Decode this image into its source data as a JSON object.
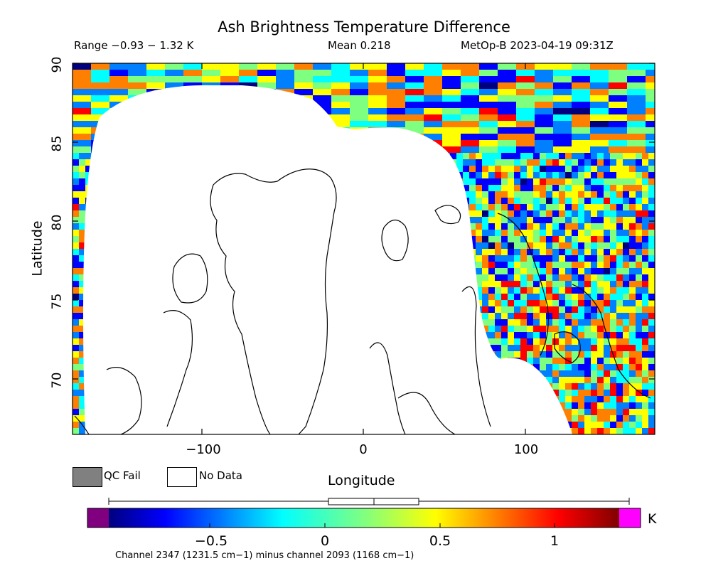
{
  "map": {
    "title": "Ash Brightness Temperature Difference",
    "range_text": "Range −0.93 − 1.32 K",
    "mean_text": "Mean 0.218",
    "satellite_text": "MetOp-B 2023-04-19 09:31Z",
    "y_axis_label": "Latitude",
    "x_axis_label": "Longitude",
    "y_ticks": [
      "90",
      "85",
      "80",
      "75",
      "70"
    ],
    "x_ticks": [
      "−100",
      "0",
      "100"
    ],
    "projection_extent": {
      "lon_min": -180,
      "lon_max": 180,
      "lat_min": 66.5,
      "lat_max": 90
    }
  },
  "legend": {
    "qc_fail_label": "QC Fail",
    "no_data_label": "No Data",
    "qc_fail_color": "#808080",
    "no_data_color": "#ffffff"
  },
  "colorbar": {
    "ticks": [
      "−0.5",
      "0",
      "0.5",
      "1"
    ],
    "unit": "K",
    "value_min": -0.93,
    "value_max": 1.32,
    "mean": 0.218,
    "underflow_color": "#800080",
    "overflow_color": "#ff00ff",
    "gradient_colors": [
      "#00007f",
      "#0000ff",
      "#007fff",
      "#00ffff",
      "#7fff7f",
      "#ffff00",
      "#ff7f00",
      "#ff0000",
      "#7f0000"
    ]
  },
  "footnote": "Channel 2347 (1231.5 cm−1) minus channel 2093 (1168 cm−1)"
}
